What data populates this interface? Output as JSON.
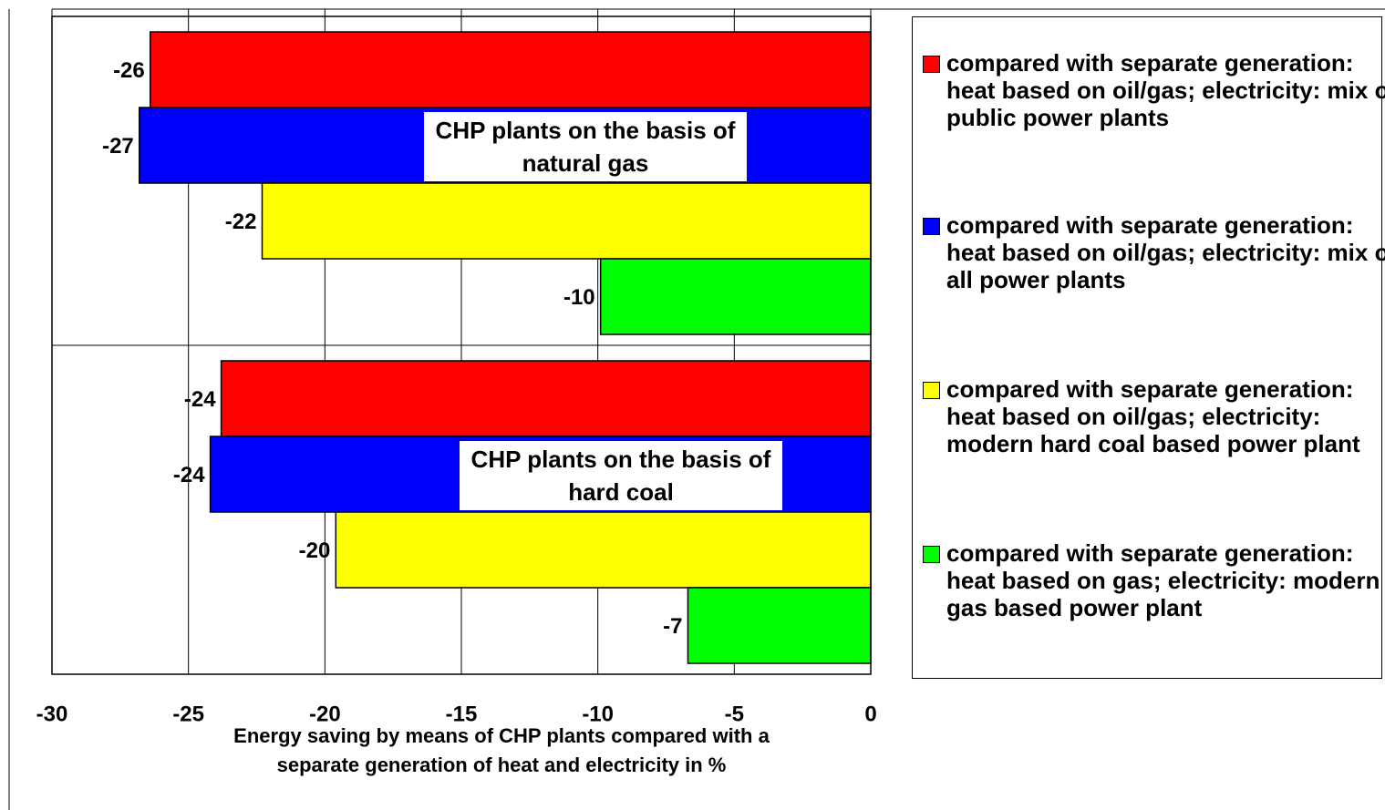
{
  "chart_data": {
    "type": "hbar",
    "categories": [
      "CHP plants on the basis of natural gas",
      "CHP plants on the basis of hard coal"
    ],
    "series": [
      {
        "name": "compared with separate generation: heat based on oil/gas; electricity: mix of public power plants",
        "color": "#ff0000",
        "values": [
          -26.4,
          -23.8
        ],
        "value_labels": [
          "-26",
          "-24"
        ]
      },
      {
        "name": "compared with separate generation: heat based on oil/gas; electricity: mix of all power plants",
        "color": "#0000ff",
        "values": [
          -26.8,
          -24.2
        ],
        "value_labels": [
          "-27",
          "-24"
        ]
      },
      {
        "name": "compared with separate generation: heat based on oil/gas; electricity: modern hard coal based power plant",
        "color": "#ffff00",
        "values": [
          -22.3,
          -19.6
        ],
        "value_labels": [
          "-22",
          "-20"
        ]
      },
      {
        "name": "compared with separate generation: heat based on gas; electricity: modern gas based power plant",
        "color": "#00ff00",
        "values": [
          -9.9,
          -6.7
        ],
        "value_labels": [
          "-10",
          "-7"
        ]
      }
    ],
    "xlabel": "Energy saving by means of CHP plants compared with a separate generation of heat and electricity in %",
    "xlim": [
      -30,
      0
    ],
    "xticks": [
      -30,
      -25,
      -20,
      -15,
      -10,
      -5,
      0
    ],
    "grid": true,
    "legend": "right"
  }
}
